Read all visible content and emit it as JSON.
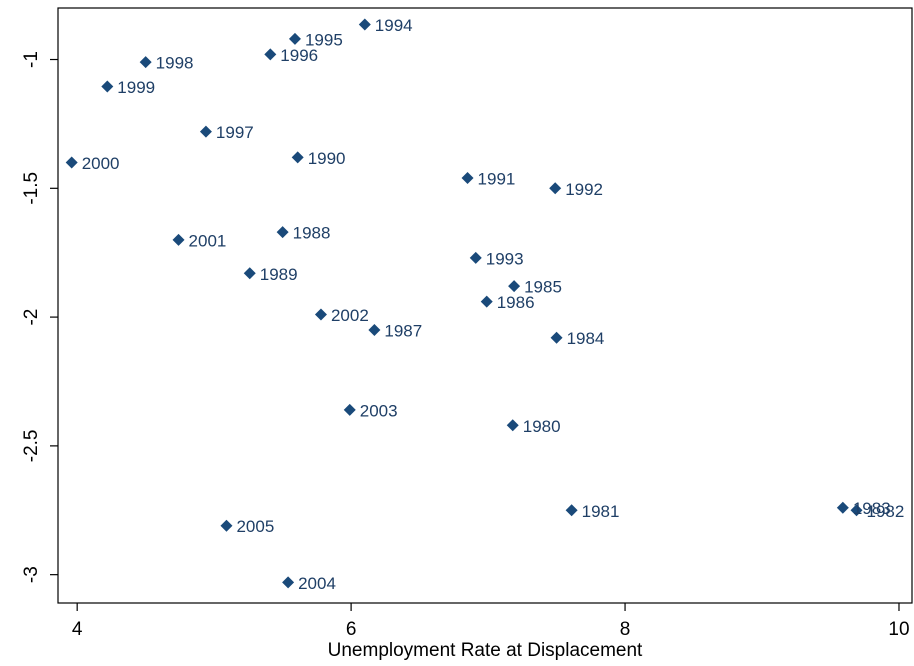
{
  "chart_data": {
    "type": "scatter",
    "x_label": "Unemployment Rate at Displacement",
    "labels": [
      "1980",
      "1981",
      "1982",
      "1983",
      "1984",
      "1985",
      "1986",
      "1987",
      "1988",
      "1989",
      "1990",
      "1991",
      "1992",
      "1993",
      "1994",
      "1995",
      "1996",
      "1997",
      "1998",
      "1999",
      "2000",
      "2001",
      "2002",
      "2003",
      "2004",
      "2005"
    ],
    "x": [
      7.18,
      7.61,
      9.69,
      9.59,
      7.5,
      7.19,
      6.99,
      6.17,
      5.5,
      5.26,
      5.61,
      6.85,
      7.49,
      6.91,
      6.1,
      5.59,
      5.41,
      4.94,
      4.5,
      4.22,
      3.96,
      4.74,
      5.78,
      5.99,
      5.54,
      5.09
    ],
    "y": [
      -2.42,
      -2.75,
      -2.75,
      -2.74,
      -2.08,
      -1.88,
      -1.94,
      -2.05,
      -1.67,
      -1.83,
      -1.38,
      -1.46,
      -1.5,
      -1.77,
      -0.864,
      -0.92,
      -0.98,
      -1.28,
      -1.01,
      -1.105,
      -1.4,
      -1.7,
      -1.99,
      -2.36,
      -3.03,
      -2.81
    ],
    "color": "#1a4a7a",
    "xlim": [
      3.86,
      10.095
    ],
    "ylim": [
      -3.11,
      -0.8
    ],
    "xticks": [
      4,
      6,
      8,
      10
    ],
    "yticks": [
      -1,
      -1.5,
      -2,
      -2.5,
      -3
    ]
  }
}
